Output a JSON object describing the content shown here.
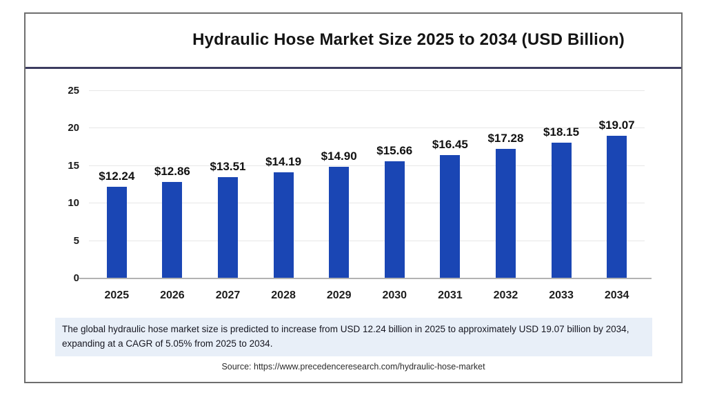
{
  "title": "Hydraulic Hose Market Size 2025 to 2034 (USD Billion)",
  "chart_data": {
    "type": "bar",
    "title": "Hydraulic Hose Market Size 2025 to 2034 (USD Billion)",
    "categories": [
      "2025",
      "2026",
      "2027",
      "2028",
      "2029",
      "2030",
      "2031",
      "2032",
      "2033",
      "2034"
    ],
    "values": [
      12.24,
      12.86,
      13.51,
      14.19,
      14.9,
      15.66,
      16.45,
      17.28,
      18.15,
      19.07
    ],
    "value_labels": [
      "$12.24",
      "$12.86",
      "$13.51",
      "$14.19",
      "$14.90",
      "$15.66",
      "$16.45",
      "$17.28",
      "$18.15",
      "$19.07"
    ],
    "xlabel": "",
    "ylabel": "",
    "ylim": [
      0,
      25
    ],
    "yticks": [
      0,
      5,
      10,
      15,
      20,
      25
    ],
    "grid": true,
    "legend": "none",
    "bar_color": "#1a46b4"
  },
  "note": "The global hydraulic hose market size is predicted to increase from USD 12.24 billion in 2025 to approximately USD 19.07 billion by 2034, expanding at a CAGR of 5.05% from 2025 to 2034.",
  "source": "Source: https://www.precedenceresearch.com/hydraulic-hose-market",
  "colors": {
    "bar": "#1a46b4",
    "title_underline": "#3c3c60",
    "frame_border": "#6e6e6e",
    "gridline": "#e7e7e7",
    "axis_line": "#b2b2b2",
    "note_background": "#e8eff8",
    "note_text": "#15151f"
  }
}
